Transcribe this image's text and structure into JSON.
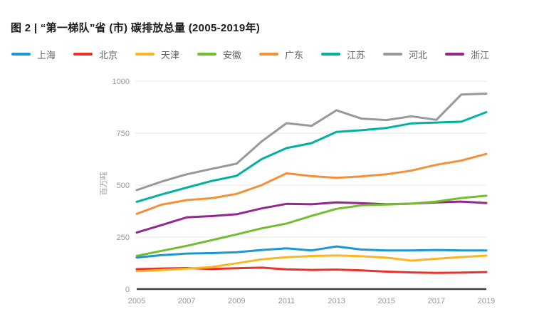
{
  "header": {
    "title": "图 2 | “第一梯队”省 (市) 碳排放总量 (2005-2019年)"
  },
  "chart_data": {
    "type": "line",
    "title": "图 2 | “第一梯队”省 (市) 碳排放总量 (2005-2019年)",
    "xlabel": "",
    "ylabel": "百万吨",
    "x": [
      2005,
      2006,
      2007,
      2008,
      2009,
      2010,
      2011,
      2012,
      2013,
      2014,
      2015,
      2016,
      2017,
      2018,
      2019
    ],
    "x_tick_labels": [
      "2005",
      "2007",
      "2009",
      "2011",
      "2013",
      "2015",
      "2017",
      "2019"
    ],
    "y_ticks": [
      0,
      250,
      500,
      750,
      1000
    ],
    "y_tick_labels": [
      "0",
      "250",
      "500",
      "750",
      "1000"
    ],
    "ylim": [
      0,
      1000
    ],
    "xlim": [
      2005,
      2019
    ],
    "grid": "horizontal-light",
    "legend_position": "top",
    "series": [
      {
        "name": "上海",
        "color": "#1d96d5",
        "values": [
          152,
          163,
          171,
          173,
          177,
          188,
          196,
          186,
          205,
          190,
          186,
          186,
          188,
          186,
          186
        ]
      },
      {
        "name": "北京",
        "color": "#e8322a",
        "values": [
          96,
          99,
          101,
          97,
          100,
          103,
          95,
          92,
          94,
          90,
          84,
          80,
          78,
          79,
          82
        ]
      },
      {
        "name": "天津",
        "color": "#f9b625",
        "values": [
          86,
          91,
          98,
          106,
          124,
          143,
          153,
          159,
          162,
          158,
          151,
          137,
          146,
          154,
          161
        ]
      },
      {
        "name": "安徽",
        "color": "#71bf2d",
        "values": [
          160,
          184,
          208,
          235,
          263,
          292,
          315,
          352,
          386,
          403,
          407,
          411,
          421,
          438,
          449
        ]
      },
      {
        "name": "广东",
        "color": "#f3913a",
        "values": [
          362,
          406,
          428,
          437,
          458,
          500,
          557,
          543,
          535,
          542,
          552,
          570,
          598,
          618,
          650
        ]
      },
      {
        "name": "江苏",
        "color": "#00b1a0",
        "values": [
          420,
          455,
          488,
          520,
          545,
          625,
          678,
          702,
          756,
          764,
          775,
          797,
          801,
          805,
          851
        ]
      },
      {
        "name": "河北",
        "color": "#98989c",
        "values": [
          476,
          517,
          552,
          578,
          603,
          710,
          798,
          785,
          860,
          820,
          813,
          831,
          814,
          936,
          940
        ]
      },
      {
        "name": "浙江",
        "color": "#93278f",
        "values": [
          272,
          308,
          345,
          351,
          360,
          388,
          410,
          408,
          417,
          413,
          408,
          411,
          417,
          421,
          414
        ]
      }
    ],
    "axis_colors": {
      "zero_line": "#3d3d3d",
      "gridline": "#e7e7e7",
      "tick_text": "#97989b"
    }
  }
}
